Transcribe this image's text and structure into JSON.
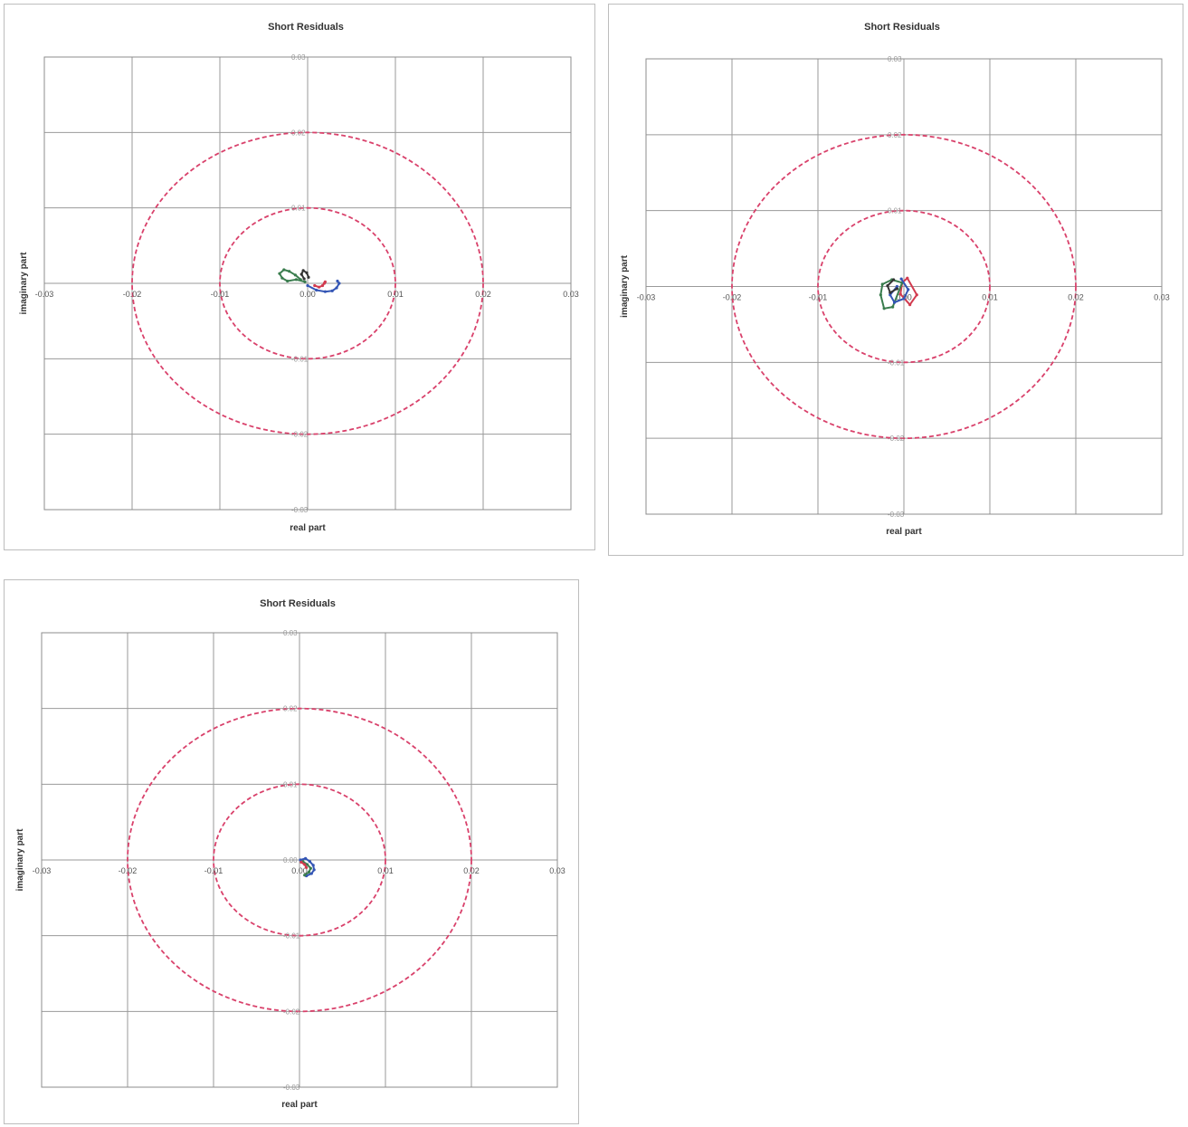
{
  "colors": {
    "grid": "#9a9a9a",
    "plot_border": "#8c8c8c",
    "circle": "#d9416b",
    "series_blue": "#3355b5",
    "series_red": "#d23b4f",
    "series_green": "#3a7d4e",
    "series_black": "#333333"
  },
  "chart_data": [
    {
      "type": "scatter",
      "title": "Short Residuals",
      "xlabel": "real part",
      "ylabel": "imaginary part",
      "xlim": [
        -0.03,
        0.03
      ],
      "ylim": [
        -0.03,
        0.03
      ],
      "x_ticks": [
        "-0.03",
        "-0.02",
        "-0.01",
        "0.00",
        "0.01",
        "0.02",
        "0.03"
      ],
      "y_ticks": [
        "0.03",
        "0.02",
        "0.01",
        "0.00",
        "-0.01",
        "-0.02",
        "-0.03"
      ],
      "grid": true,
      "reference_circles": [
        0.01,
        0.02
      ],
      "series": [
        {
          "color": "#3355b5",
          "x": [
            0.0,
            0.001,
            0.002,
            0.0028,
            0.0033,
            0.0036,
            0.0034
          ],
          "y": [
            -0.0003,
            -0.0009,
            -0.0011,
            -0.001,
            -0.0006,
            0.0,
            0.0003
          ]
        },
        {
          "color": "#d23b4f",
          "x": [
            0.0008,
            0.0013,
            0.0017,
            0.0019,
            0.002
          ],
          "y": [
            -0.0003,
            -0.0005,
            -0.0003,
            0.0,
            0.0002
          ]
        },
        {
          "color": "#3a7d4e",
          "x": [
            -0.0003,
            -0.0013,
            -0.0023,
            -0.0029,
            -0.0032,
            -0.0027,
            -0.0021,
            -0.0014,
            -0.0008
          ],
          "y": [
            0.0002,
            0.0005,
            0.0003,
            0.0007,
            0.0013,
            0.0018,
            0.0016,
            0.0011,
            0.0005
          ]
        },
        {
          "color": "#333333",
          "x": [
            -0.0004,
            -0.0007,
            -0.0005,
            -0.0001,
            0.0001
          ],
          "y": [
            0.0006,
            0.0012,
            0.0017,
            0.0014,
            0.0008
          ]
        }
      ]
    },
    {
      "type": "scatter",
      "title": "Short Residuals",
      "xlabel": "real part",
      "ylabel": "imaginary part",
      "xlim": [
        -0.03,
        0.03
      ],
      "ylim": [
        -0.03,
        0.03
      ],
      "x_ticks": [
        "-0.03",
        "-0.02",
        "-0.01",
        "0.00",
        "0.01",
        "0.02",
        "0.03"
      ],
      "y_ticks": [
        "0.03",
        "0.02",
        "0.01",
        "0.00",
        "-0.01",
        "-0.02",
        "-0.03"
      ],
      "grid": true,
      "reference_circles": [
        0.01,
        0.02
      ],
      "series": [
        {
          "color": "#d23b4f",
          "x": [
            -0.0002,
            0.0004,
            0.0015,
            0.0007,
            -0.0004,
            -0.0002
          ],
          "y": [
            0.0005,
            0.0011,
            -0.0011,
            -0.0024,
            -0.001,
            0.0005
          ]
        },
        {
          "color": "#3a7d4e",
          "x": [
            -0.0002,
            -0.0014,
            -0.0025,
            -0.0027,
            -0.0023,
            -0.0013,
            -0.0002
          ],
          "y": [
            0.0005,
            0.0009,
            0.0003,
            -0.0011,
            -0.0029,
            -0.0027,
            0.0005
          ]
        },
        {
          "color": "#3355b5",
          "x": [
            -0.0008,
            -0.0016,
            -0.0011,
            0.0,
            0.0005,
            -0.0003
          ],
          "y": [
            0.0,
            -0.0011,
            -0.0021,
            -0.0016,
            -0.0004,
            0.001
          ]
        },
        {
          "color": "#333333",
          "x": [
            -0.0012,
            -0.0019,
            -0.0016,
            -0.0008
          ],
          "y": [
            0.0009,
            0.0001,
            -0.0008,
            -0.0003
          ]
        }
      ]
    },
    {
      "type": "scatter",
      "title": "Short Residuals",
      "xlabel": "real part",
      "ylabel": "imaginary part",
      "xlim": [
        -0.03,
        0.03
      ],
      "ylim": [
        -0.03,
        0.03
      ],
      "x_ticks": [
        "-0.03",
        "-0.02",
        "-0.01",
        "0.00",
        "0.01",
        "0.02",
        "0.03"
      ],
      "y_ticks": [
        "0.03",
        "0.02",
        "0.01",
        "0.00",
        "-0.01",
        "-0.02",
        "-0.03"
      ],
      "grid": true,
      "reference_circles": [
        0.01,
        0.02
      ],
      "series": [
        {
          "color": "#3355b5",
          "x": [
            0.0001,
            0.0007,
            0.0012,
            0.0016,
            0.0017,
            0.0014,
            0.0008
          ],
          "y": [
            0.0,
            0.0002,
            -0.0002,
            -0.0007,
            -0.0013,
            -0.0018,
            -0.0021
          ]
        },
        {
          "color": "#3a7d4e",
          "x": [
            0.0004,
            0.0009,
            0.0013,
            0.0011,
            0.0006
          ],
          "y": [
            -0.0002,
            -0.0006,
            -0.0011,
            -0.0016,
            -0.002
          ]
        },
        {
          "color": "#d23b4f",
          "x": [
            0.0002,
            0.0006,
            0.0008
          ],
          "y": [
            -0.0003,
            -0.0006,
            -0.001
          ]
        }
      ]
    }
  ]
}
